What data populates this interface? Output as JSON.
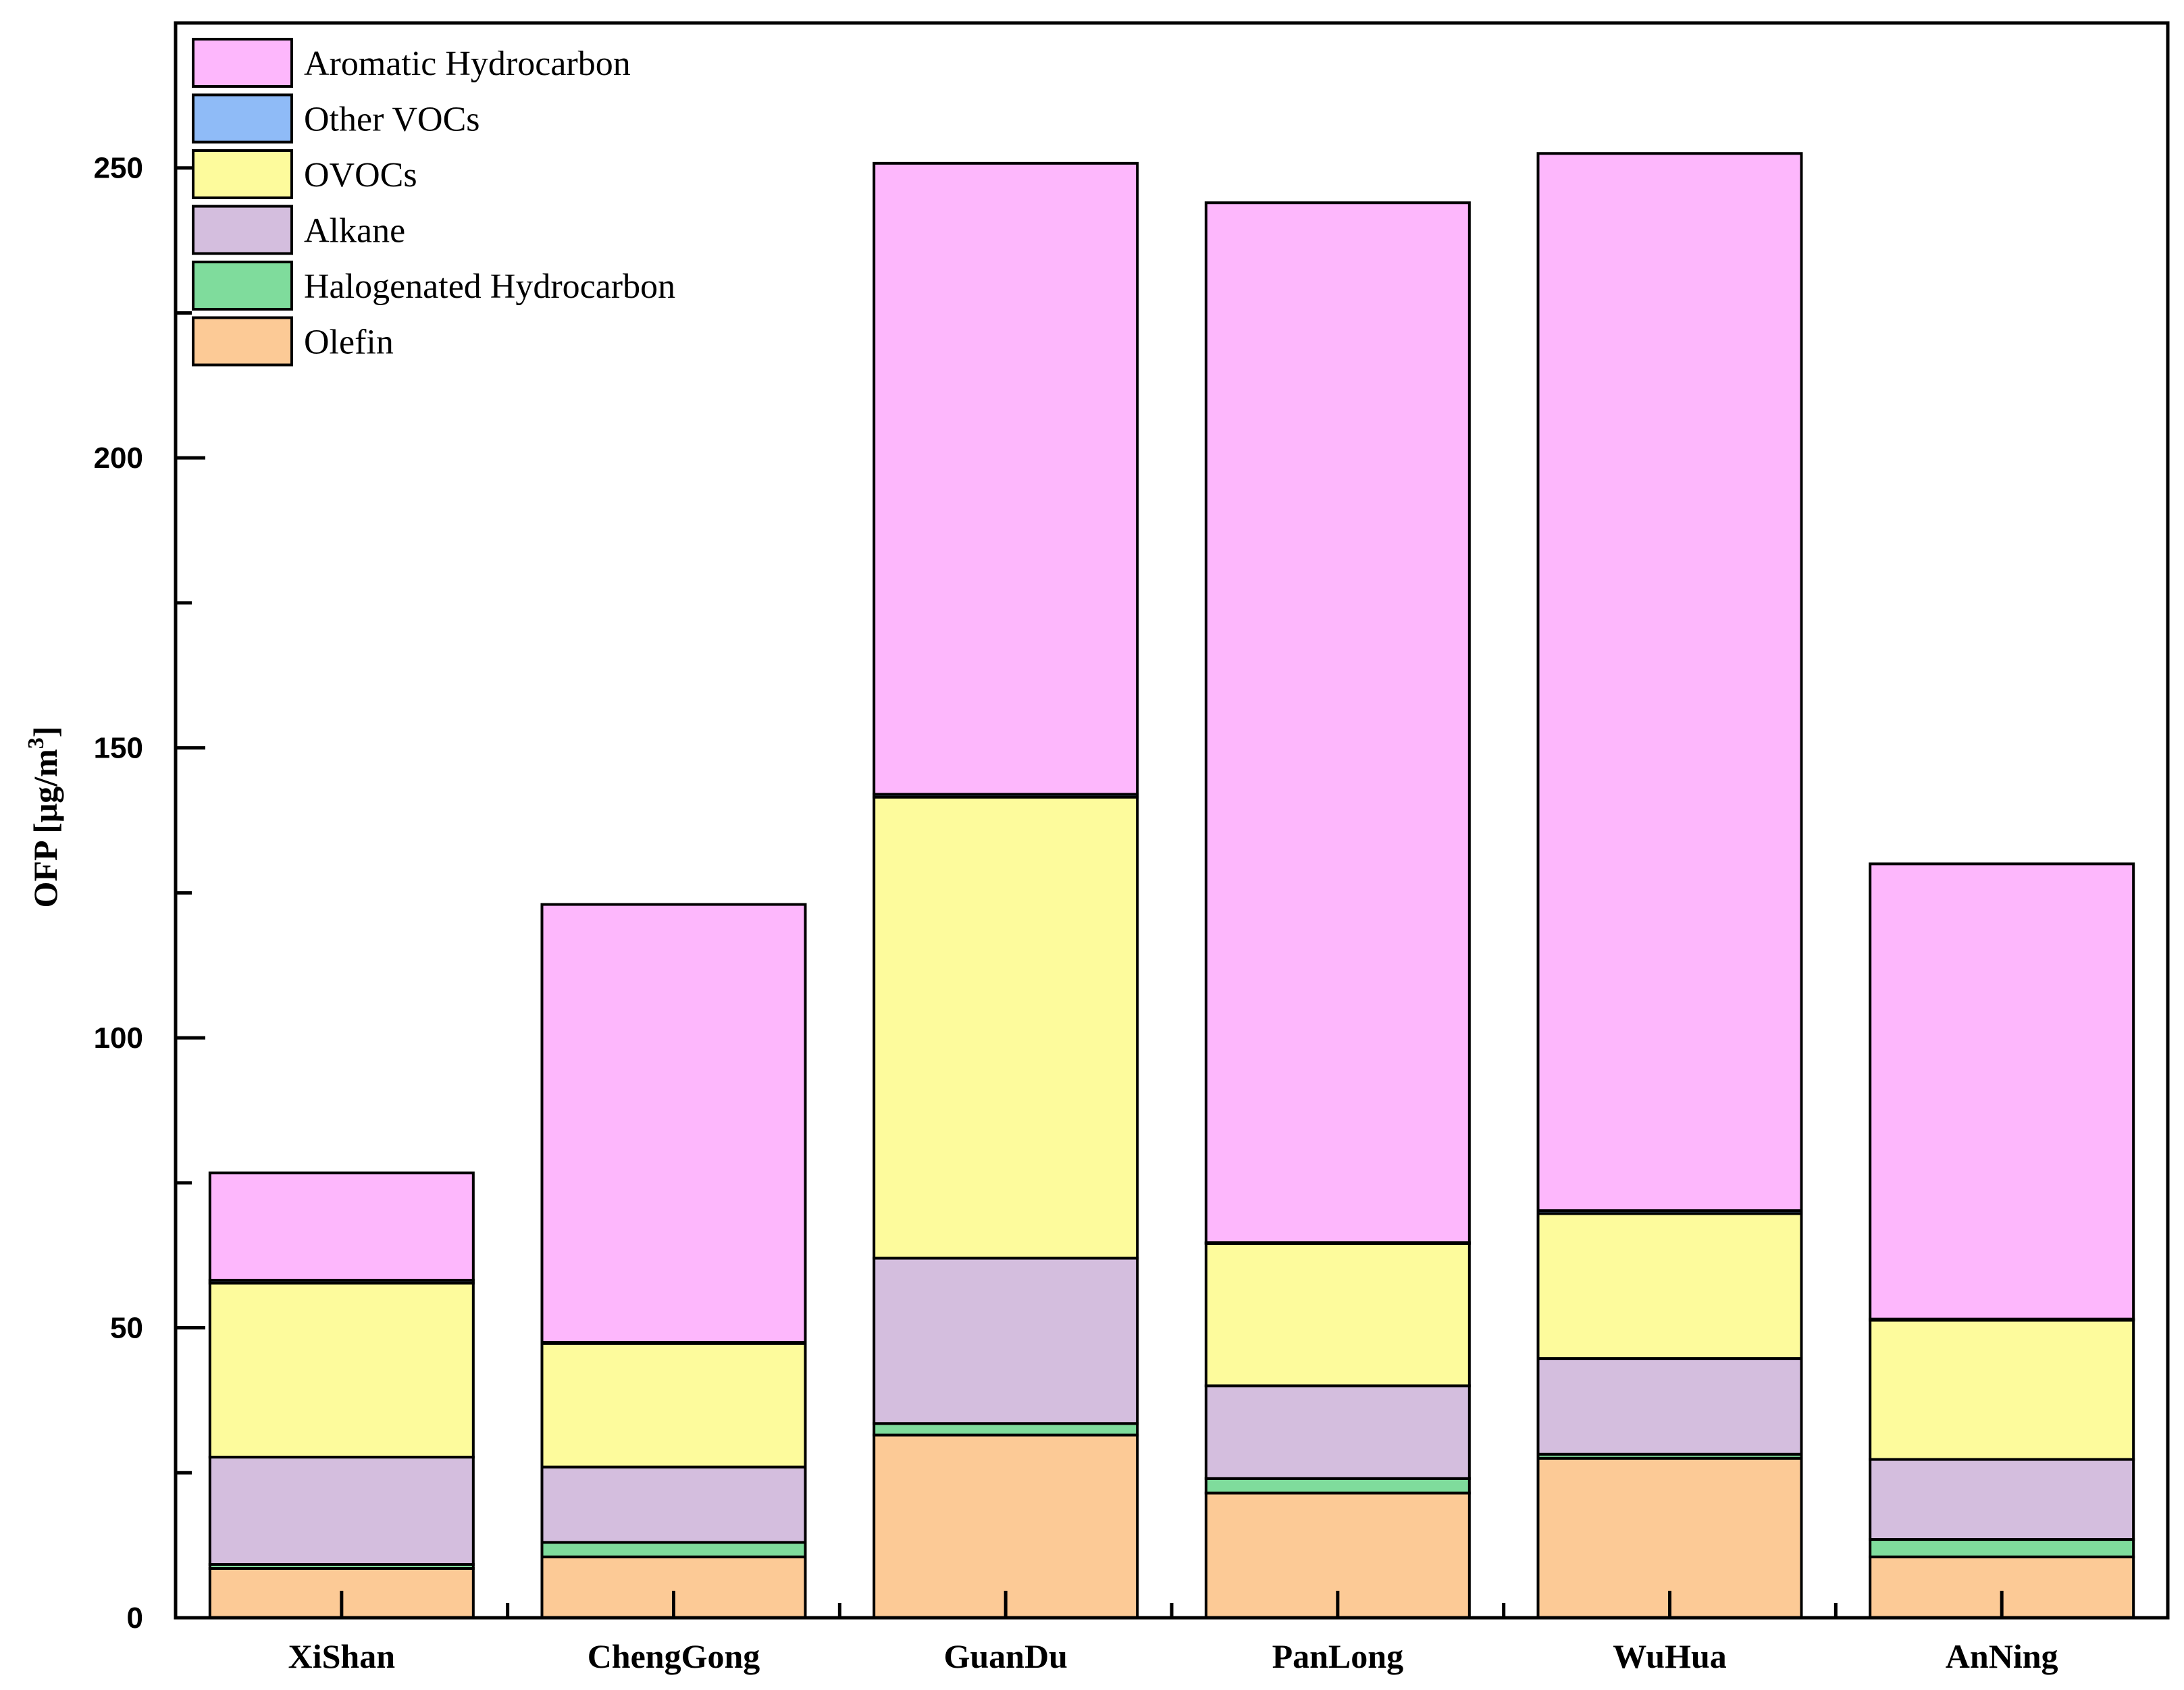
{
  "chart_data": {
    "type": "bar",
    "stacked": true,
    "title": "",
    "xlabel": "",
    "ylabel": "OFP [μg/m",
    "ylabel_superscript": "3",
    "ylabel_suffix": "]",
    "ylim": [
      0,
      275
    ],
    "yticks": [
      0,
      50,
      100,
      150,
      200,
      250
    ],
    "yticks_minor": [
      25,
      75,
      125,
      175,
      225
    ],
    "categories": [
      "XiShan",
      "ChengGong",
      "GuanDu",
      "PanLong",
      "WuHua",
      "AnNing"
    ],
    "series": [
      {
        "name": "Olefin",
        "color": "#FCCA96",
        "values": [
          8.5,
          10.5,
          31.5,
          21.5,
          27.5,
          10.5
        ]
      },
      {
        "name": "Halogenated Hydrocarbon",
        "color": "#7FDC9C",
        "values": [
          0.7,
          2.5,
          2.0,
          2.5,
          0.7,
          3.0
        ]
      },
      {
        "name": "Alkane",
        "color": "#D4BEDE",
        "values": [
          18.5,
          13.0,
          28.5,
          16.0,
          16.5,
          13.8
        ]
      },
      {
        "name": "OVOCs",
        "color": "#FDFB9C",
        "values": [
          30.0,
          21.3,
          79.5,
          24.5,
          25.0,
          24.0
        ]
      },
      {
        "name": "Other VOCs",
        "color": "#8FBBF7",
        "values": [
          0.5,
          0.2,
          0.5,
          0.2,
          0.5,
          0.2
        ]
      },
      {
        "name": "Aromatic Hydrocarbon",
        "color": "#FDB7FC",
        "values": [
          18.5,
          75.5,
          108.8,
          179.3,
          182.3,
          78.5
        ]
      }
    ],
    "legend_order": [
      "Aromatic Hydrocarbon",
      "Other VOCs",
      "OVOCs",
      "Alkane",
      "Halogenated Hydrocarbon",
      "Olefin"
    ],
    "legend_position": "top-left",
    "grid": false
  }
}
